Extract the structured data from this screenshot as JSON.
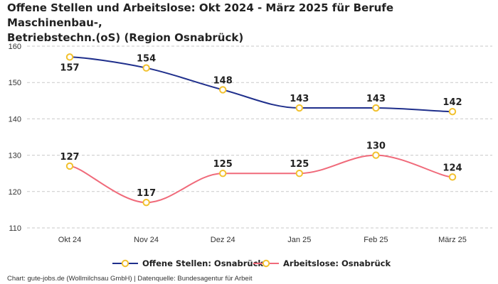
{
  "chart_data": {
    "type": "line",
    "title_lines": [
      "Offene Stellen und Arbeitslose: Okt 2024 - März 2025 für Berufe Maschinenbau-,",
      "Betriebstechn.(oS) (Region Osnabrück)"
    ],
    "categories": [
      "Okt 24",
      "Nov 24",
      "Dez 24",
      "Jan 25",
      "Feb 25",
      "März 25"
    ],
    "series": [
      {
        "name": "Offene Stellen: Osnabrück",
        "values": [
          157,
          154,
          148,
          143,
          143,
          142
        ],
        "labels": [
          "157",
          "154",
          "148",
          "143",
          "143",
          "142"
        ],
        "color": "#1f2f8c",
        "label_position": [
          "below",
          "above",
          "above",
          "above",
          "above",
          "above"
        ]
      },
      {
        "name": "Arbeitslose: Osnabrück",
        "values": [
          127,
          117,
          125,
          125,
          130,
          124
        ],
        "labels": [
          "127",
          "117",
          "125",
          "125",
          "130",
          "124"
        ],
        "color": "#f06a7a",
        "label_position": [
          "above",
          "above",
          "above",
          "above",
          "above",
          "above"
        ]
      }
    ],
    "y_ticks": [
      110,
      120,
      130,
      140,
      150,
      160
    ],
    "y_tick_labels": [
      "110",
      "120",
      "130",
      "140",
      "150",
      "160"
    ],
    "ylim": [
      110,
      160
    ],
    "grid": true,
    "marker_color": "#f2c12e",
    "legend_position": "bottom"
  },
  "source_text": "Chart: gute-jobs.de (Wollmilchsau GmbH) | Datenquelle: Bundesagentur für Arbeit"
}
